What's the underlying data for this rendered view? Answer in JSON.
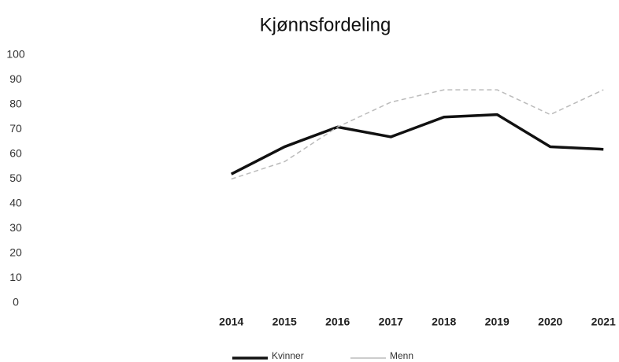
{
  "chart_data": {
    "type": "line",
    "title": "Kjønnsfordeling",
    "categories": [
      "2014",
      "2015",
      "2016",
      "2017",
      "2018",
      "2019",
      "2020",
      "2021"
    ],
    "series": [
      {
        "name": "Kvinner",
        "color": "#111111",
        "values": [
          52,
          63,
          71,
          67,
          75,
          76,
          63,
          62
        ]
      },
      {
        "name": "Menn",
        "color": "#bbbbbb",
        "values": [
          50,
          57,
          71,
          81,
          86,
          86,
          76,
          86
        ]
      }
    ],
    "ylim": [
      0,
      100
    ],
    "yticks": [
      0,
      10,
      20,
      30,
      40,
      50,
      60,
      70,
      80,
      90,
      100
    ],
    "grid": false,
    "legend": "bottom"
  }
}
